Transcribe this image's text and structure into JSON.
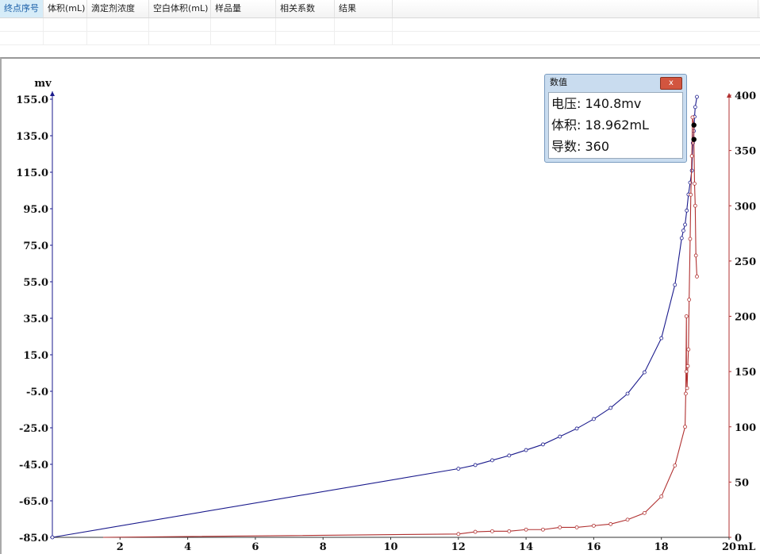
{
  "table": {
    "columns": [
      "终点序号",
      "体积(mL)",
      "滴定剂浓度",
      "空白体积(mL)",
      "样品量",
      "相关系数",
      "结果"
    ]
  },
  "tooltip": {
    "title": "数值",
    "close_label": "x",
    "lines": [
      "电压: 140.8mv",
      "体积: 18.962mL",
      "导数: 360"
    ]
  },
  "chart_data": {
    "type": "line",
    "xlabel": "mL",
    "ylabel_left": "mv",
    "ylabel_right": "",
    "xlim": [
      0,
      20
    ],
    "ylim_left": [
      -85,
      155
    ],
    "ylim_right": [
      0,
      400
    ],
    "x_ticks": [
      "2",
      "4",
      "6",
      "8",
      "10",
      "12",
      "14",
      "16",
      "18",
      "20"
    ],
    "y_left_ticks": [
      "155.0",
      "135.0",
      "115.0",
      "95.0",
      "75.0",
      "55.0",
      "35.0",
      "15.0",
      "-5.0",
      "-25.0",
      "-45.0",
      "-65.0",
      "-85.0"
    ],
    "y_right_ticks": [
      "0",
      "50",
      "100",
      "150",
      "200",
      "250",
      "300",
      "350",
      "400"
    ],
    "grid": false,
    "colors": {
      "left": "#1a1a8c",
      "right": "#b03030"
    },
    "series": [
      {
        "axis": "left",
        "points": [
          [
            0,
            -85
          ],
          [
            12,
            -47.4
          ],
          [
            12.5,
            -45.4
          ],
          [
            13,
            -42.8
          ],
          [
            13.5,
            -40.2
          ],
          [
            14,
            -37.2
          ],
          [
            14.5,
            -34.1
          ],
          [
            15,
            -29.8
          ],
          [
            15.5,
            -25.4
          ],
          [
            16,
            -20.2
          ],
          [
            16.5,
            -14.1
          ],
          [
            17,
            -6.3
          ],
          [
            17.5,
            5.4
          ],
          [
            18,
            24.1
          ],
          [
            18.4,
            53.3
          ],
          [
            18.6,
            78.9
          ],
          [
            18.65,
            83
          ],
          [
            18.7,
            86.3
          ],
          [
            18.75,
            94
          ],
          [
            18.8,
            102.8
          ],
          [
            18.85,
            109.3
          ],
          [
            18.9,
            115.9
          ],
          [
            18.93,
            131
          ],
          [
            18.96,
            137.6
          ],
          [
            18.98,
            145.4
          ],
          [
            19.0,
            150.7
          ],
          [
            19.05,
            156.3
          ]
        ]
      },
      {
        "axis": "right",
        "points": [
          [
            1.5,
            0
          ],
          [
            12,
            3
          ],
          [
            12.5,
            5
          ],
          [
            13,
            5.5
          ],
          [
            13.5,
            5.5
          ],
          [
            14,
            7
          ],
          [
            14.5,
            7
          ],
          [
            15,
            9
          ],
          [
            15.5,
            9
          ],
          [
            16,
            10.5
          ],
          [
            16.5,
            12
          ],
          [
            17,
            16
          ],
          [
            17.5,
            22
          ],
          [
            18,
            37
          ],
          [
            18.4,
            65
          ],
          [
            18.7,
            100
          ],
          [
            18.72,
            130
          ],
          [
            18.74,
            200
          ],
          [
            18.74,
            150
          ],
          [
            18.76,
            135
          ],
          [
            18.78,
            155
          ],
          [
            18.8,
            170
          ],
          [
            18.82,
            215
          ],
          [
            18.85,
            270
          ],
          [
            18.87,
            310
          ],
          [
            18.9,
            345
          ],
          [
            18.92,
            380
          ],
          [
            18.96,
            373
          ],
          [
            18.96,
            360
          ],
          [
            18.98,
            320
          ],
          [
            19.0,
            300
          ],
          [
            19.02,
            255
          ],
          [
            19.05,
            236
          ]
        ]
      }
    ],
    "highlight": [
      [
        18.962,
        373
      ],
      [
        18.962,
        360
      ]
    ]
  }
}
